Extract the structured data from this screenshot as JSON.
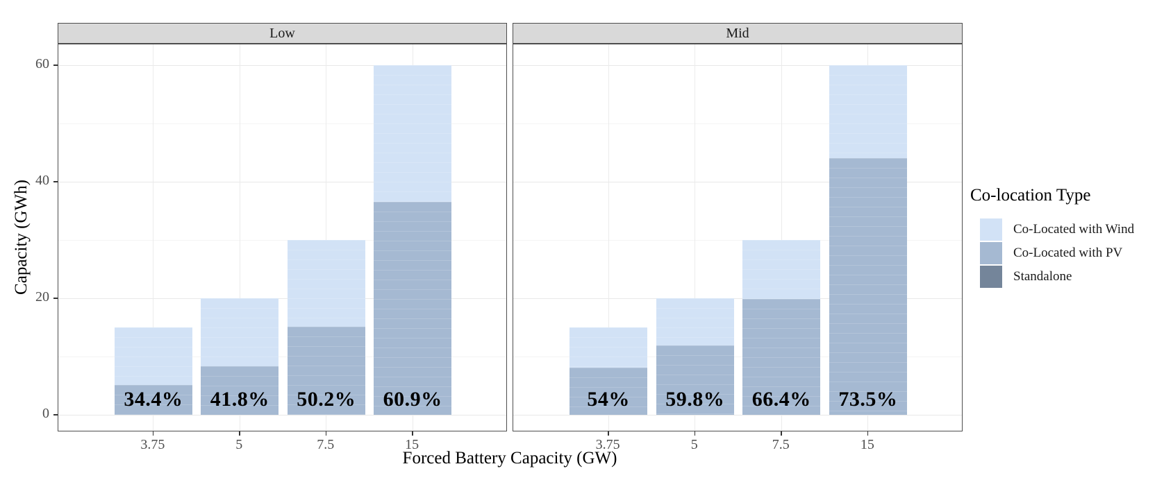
{
  "axes": {
    "x_title": "Forced Battery Capacity (GW)",
    "y_title": "Capacity (GWh)",
    "y_tick_labels": [
      "0",
      "20",
      "40",
      "60"
    ],
    "x_tick_labels": [
      "3.75",
      "5",
      "7.5",
      "15"
    ]
  },
  "legend": {
    "title": "Co-location Type",
    "items": [
      {
        "key": "wind",
        "label": "Co-Located with Wind",
        "color": "#d2e2f6"
      },
      {
        "key": "pv",
        "label": "Co-Located with PV",
        "color": "#a5b9d2"
      },
      {
        "key": "standalone",
        "label": "Standalone",
        "color": "#74859a"
      }
    ]
  },
  "chart_data": {
    "type": "bar",
    "stacked": true,
    "grid": "on",
    "legend_position": "right",
    "xlabel": "Forced Battery Capacity (GW)",
    "ylabel": "Capacity (GWh)",
    "ylim": [
      0,
      60
    ],
    "y_major_ticks": [
      0,
      20,
      40,
      60
    ],
    "y_minor_gridlines": [
      10,
      30,
      50
    ],
    "categories": [
      "3.75",
      "5",
      "7.5",
      "15"
    ],
    "stack_order_bottom_to_top": [
      "standalone",
      "pv",
      "wind"
    ],
    "facets": [
      {
        "label": "Low",
        "bars": [
          {
            "x": "3.75",
            "total": 15,
            "pct_label": "34.4%",
            "segments": {
              "wind": 9.84,
              "pv": 5.16,
              "standalone": 0
            }
          },
          {
            "x": "5",
            "total": 20,
            "pct_label": "41.8%",
            "segments": {
              "wind": 11.64,
              "pv": 8.36,
              "standalone": 0
            }
          },
          {
            "x": "7.5",
            "total": 30,
            "pct_label": "50.2%",
            "segments": {
              "wind": 14.94,
              "pv": 15.06,
              "standalone": 0
            }
          },
          {
            "x": "15",
            "total": 60,
            "pct_label": "60.9%",
            "segments": {
              "wind": 23.46,
              "pv": 36.54,
              "standalone": 0
            }
          }
        ]
      },
      {
        "label": "Mid",
        "bars": [
          {
            "x": "3.75",
            "total": 15,
            "pct_label": "54%",
            "segments": {
              "wind": 6.9,
              "pv": 8.1,
              "standalone": 0
            }
          },
          {
            "x": "5",
            "total": 20,
            "pct_label": "59.8%",
            "segments": {
              "wind": 8.04,
              "pv": 11.96,
              "standalone": 0
            }
          },
          {
            "x": "7.5",
            "total": 30,
            "pct_label": "66.4%",
            "segments": {
              "wind": 10.08,
              "pv": 19.92,
              "standalone": 0
            }
          },
          {
            "x": "15",
            "total": 60,
            "pct_label": "73.5%",
            "segments": {
              "wind": 15.9,
              "pv": 44.1,
              "standalone": 0
            }
          }
        ]
      }
    ]
  }
}
